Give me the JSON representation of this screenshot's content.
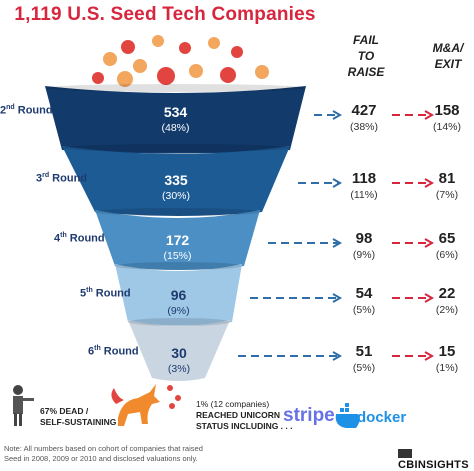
{
  "chart_data": {
    "type": "funnel",
    "title": "1,119 U.S. Seed Tech Companies",
    "column_headers": [
      "FAIL TO RAISE",
      "M&A/ EXIT"
    ],
    "stages": [
      {
        "round": "2",
        "suffix": "nd",
        "label": "Round",
        "value": "534",
        "pct": "(48%)",
        "fail": "427",
        "fail_pct": "(38%)",
        "exit": "158",
        "exit_pct": "(14%)",
        "color": "#123a6b"
      },
      {
        "round": "3",
        "suffix": "rd",
        "label": "Round",
        "value": "335",
        "pct": "(30%)",
        "fail": "118",
        "fail_pct": "(11%)",
        "exit": "81",
        "exit_pct": "(7%)",
        "color": "#1d5b94"
      },
      {
        "round": "4",
        "suffix": "th",
        "label": "Round",
        "value": "172",
        "pct": "(15%)",
        "fail": "98",
        "fail_pct": "(9%)",
        "exit": "65",
        "exit_pct": "(6%)",
        "color": "#4b8fc4"
      },
      {
        "round": "5",
        "suffix": "th",
        "label": "Round",
        "value": "96",
        "pct": "(9%)",
        "fail": "54",
        "fail_pct": "(5%)",
        "exit": "22",
        "exit_pct": "(2%)",
        "color": "#9fc8e6"
      },
      {
        "round": "6",
        "suffix": "th",
        "label": "Round",
        "value": "30",
        "pct": "(3%)",
        "fail": "51",
        "fail_pct": "(5%)",
        "exit": "15",
        "exit_pct": "(1%)",
        "color": "#c9d6e2"
      }
    ]
  },
  "bottom": {
    "dead_text_1": "67% DEAD /",
    "dead_text_2": "SELF-SUSTAINING",
    "unicorn_text_1": "1% (12 companies)",
    "unicorn_text_2": "REACHED UNICORN",
    "unicorn_text_3": "STATUS INCLUDING . . .",
    "logo_stripe": "stripe",
    "logo_docker": "docker",
    "note_1": "Note: All numbers based on cohort of companies that raised",
    "note_2": "Seed in 2008, 2009 or 2010 and disclosed valuations only.",
    "brand": "CBINSIGHTS"
  },
  "colors": {
    "accent_red": "#d7263d",
    "dash_blue": "#2f6ea8",
    "dash_red": "#d7263d",
    "dot_orange": "#f2a65e",
    "dot_red": "#e2453f"
  },
  "icons": [
    "zombie-icon",
    "unicorn-icon",
    "whale-icon"
  ]
}
